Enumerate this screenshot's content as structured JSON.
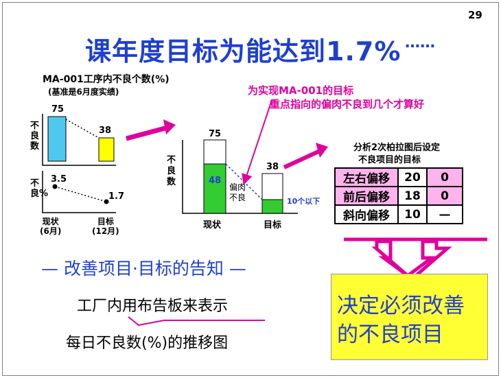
{
  "page_number": "29",
  "title": "课年度目标为能达到1.7%",
  "title_dots": "……",
  "left_chart": {
    "heading": "MA-001工序内不良个数(%)",
    "subheading": "(基准是6月度实绩)",
    "y_label_top": "不良数",
    "y_label_bottom": "不良%",
    "count_values": [
      "75",
      "38"
    ],
    "percent_values": [
      "3.5",
      "1.7"
    ],
    "x_labels": [
      {
        "line1": "现状",
        "line2": "(6月)"
      },
      {
        "line1": "目标",
        "line2": "(12月)"
      }
    ],
    "colors": {
      "current_bar": "#4fc8f0",
      "target_bar": "#ffff00"
    }
  },
  "middle_chart": {
    "y_label": "不良数",
    "bar_totals": [
      "75",
      "38"
    ],
    "offset_value": "48",
    "offset_label": "偏肉不良",
    "target_note": "10个以下",
    "x_labels": [
      "现状",
      "目标"
    ],
    "colors": {
      "segment": "#33cc33"
    }
  },
  "callout": {
    "line1": "为实现MA-001的目标",
    "line2": "重点指向的偏肉不良到几个才算好"
  },
  "analysis": {
    "line1": "分析2次柏拉图后设定",
    "line2": "不良项目的目标",
    "rows": [
      {
        "item": "左右偏移",
        "value": "20",
        "goal": "0"
      },
      {
        "item": "前后偏移",
        "value": "18",
        "goal": "0"
      },
      {
        "item": "斜向偏移",
        "value": "10",
        "goal": "—"
      }
    ]
  },
  "notice_heading": "— 改善项目·目标的告知 —",
  "notice_line1": "工厂内用布告板来表示",
  "notice_line2": "每日不良数(%)的推移图",
  "decision": {
    "line1": "决定必须改善",
    "line2": "的不良项目"
  }
}
